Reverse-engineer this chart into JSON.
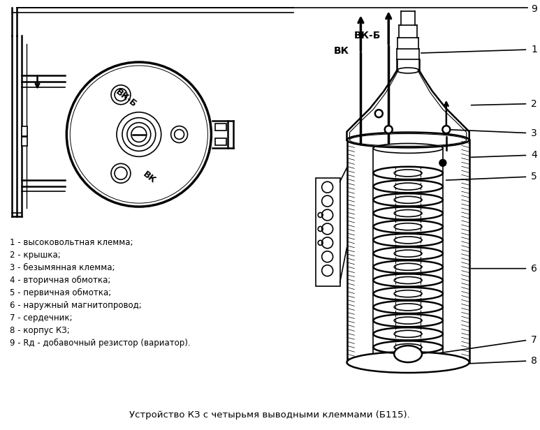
{
  "title": "Устройство КЗ с четырьмя выводными клеммами (Б115).",
  "background_color": "#ffffff",
  "legend_items": [
    "1 - высоковольтная клемма;",
    "2 - крышка;",
    "3 - безымянная клемма;",
    "4 - вторичная обмотка;",
    "5 - первичная обмотка;",
    "6 - наружный магнитопровод;",
    "7 - сердечник;",
    "8 - корпус КЗ;",
    "9 - Rд - добавочный резистор (вариатор)."
  ],
  "label_VKB": "ВК-Б",
  "label_VK": "ВК",
  "fig_width": 7.73,
  "fig_height": 6.16,
  "dpi": 100
}
